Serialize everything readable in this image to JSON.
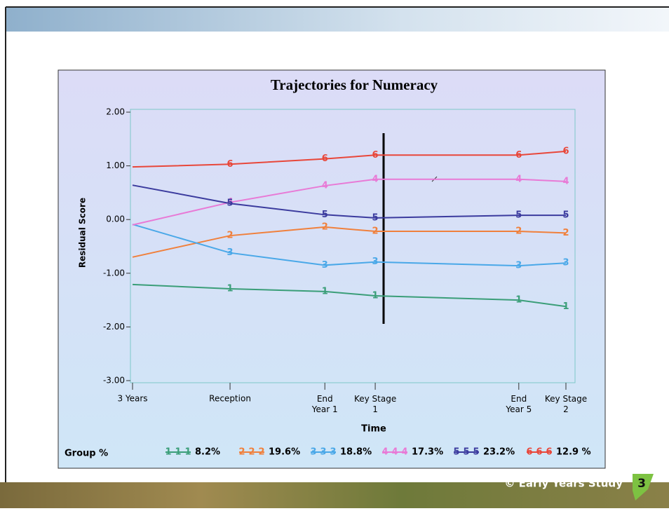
{
  "chart_data": {
    "type": "line",
    "title": "Trajectories for Numeracy",
    "x_label": "Time",
    "y_label": "Residual  Score",
    "legend_title": "Group %",
    "xlim": [
      3,
      11
    ],
    "xticks": [
      {
        "value": 3,
        "label": "3 Years"
      },
      {
        "value": 4.8,
        "label": "Reception"
      },
      {
        "value": 6.55,
        "label": "End\nYear 1"
      },
      {
        "value": 7.48,
        "label": "Key Stage\n1"
      },
      {
        "value": 10.13,
        "label": "End\nYear 5"
      },
      {
        "value": 11,
        "label": "Key Stage\n2"
      }
    ],
    "x": [
      3,
      4.8,
      6.55,
      7.48,
      10.13,
      11
    ],
    "ylim": [
      -3,
      2
    ],
    "yticks": [
      {
        "value": 2,
        "label": "2.00"
      },
      {
        "value": 1,
        "label": "1.00"
      },
      {
        "value": 0,
        "label": "0.00"
      },
      {
        "value": -1,
        "label": "-1.00"
      },
      {
        "value": -2,
        "label": "-2.00"
      },
      {
        "value": -3,
        "label": "-3.00"
      }
    ],
    "series": [
      {
        "name": "8.2%",
        "marker": "1",
        "color": "#3a9e78",
        "values": [
          -1.21,
          -1.29,
          -1.34,
          -1.42,
          -1.5,
          -1.62
        ]
      },
      {
        "name": "19.6%",
        "marker": "2",
        "color": "#f0803c",
        "values": [
          -0.7,
          -0.3,
          -0.14,
          -0.22,
          -0.22,
          -0.25
        ]
      },
      {
        "name": "18.8%",
        "marker": "3",
        "color": "#4aa8e8",
        "values": [
          -0.09,
          -0.62,
          -0.85,
          -0.79,
          -0.86,
          -0.81
        ]
      },
      {
        "name": "17.3%",
        "marker": "4",
        "color": "#e87ad6",
        "values": [
          -0.1,
          0.32,
          0.63,
          0.75,
          0.75,
          0.71
        ]
      },
      {
        "name": "23.2%",
        "marker": "5",
        "color": "#3b3b9e",
        "values": [
          0.64,
          0.3,
          0.09,
          0.03,
          0.08,
          0.08
        ]
      },
      {
        "name": "12.9 %",
        "marker": "6",
        "color": "#e8473a",
        "values": [
          0.98,
          1.03,
          1.13,
          1.2,
          1.2,
          1.27
        ]
      }
    ]
  },
  "footer": {
    "text": "© Early Years Study",
    "page": "3"
  }
}
